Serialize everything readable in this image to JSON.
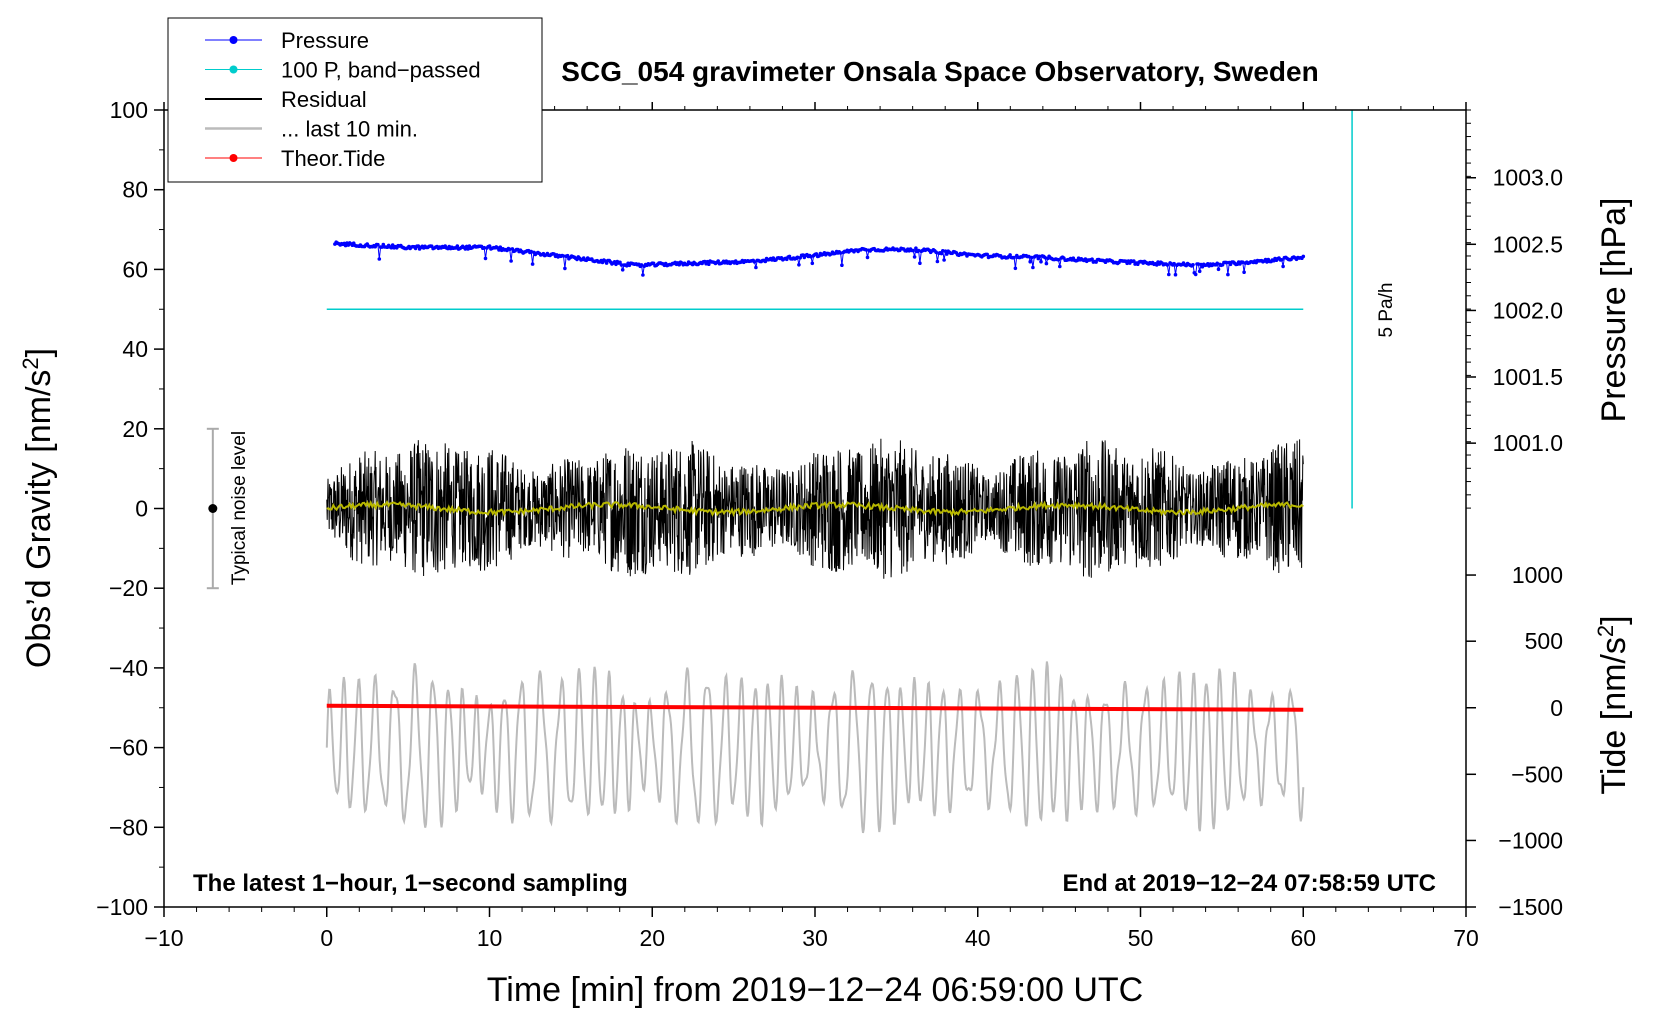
{
  "chart_data": {
    "type": "line",
    "title": "SCG_054 gravimeter Onsala Space Observatory, Sweden",
    "xlabel": "Time [min] from 2019−12−24 06:59:00 UTC",
    "ylabel_left": "Obs’d Gravity [nm/s",
    "ylabel_left_sup": "2",
    "ylabel_left_close": "]",
    "ylabel_pressure": "Pressure [hPa]",
    "ylabel_tide": "Tide [nm/s",
    "ylabel_tide_sup": "2",
    "ylabel_tide_close": "]",
    "xlim": [
      -10,
      70
    ],
    "ylim": [
      -100,
      100
    ],
    "x_ticks": [
      -10,
      0,
      10,
      20,
      30,
      40,
      50,
      60,
      70
    ],
    "x_tick_labels": [
      "−10",
      "0",
      "10",
      "20",
      "30",
      "40",
      "50",
      "60",
      "70"
    ],
    "y_ticks": [
      -100,
      -80,
      -60,
      -40,
      -20,
      0,
      20,
      40,
      60,
      80,
      100
    ],
    "y_tick_labels": [
      "−100",
      "−80",
      "−60",
      "−40",
      "−20",
      "0",
      "20",
      "40",
      "60",
      "80",
      "100"
    ],
    "pressure_ticks": [
      {
        "label": "1003.0",
        "left_equiv": 83
      },
      {
        "label": "1002.5",
        "left_equiv": 66.3
      },
      {
        "label": "1002.0",
        "left_equiv": 49.7
      },
      {
        "label": "1001.5",
        "left_equiv": 33
      },
      {
        "label": "1001.0",
        "left_equiv": 16.4
      }
    ],
    "tide_ticks": [
      {
        "label": "1000",
        "left_equiv": -16.7
      },
      {
        "label": "500",
        "left_equiv": -33.3
      },
      {
        "label": "0",
        "left_equiv": -50
      },
      {
        "label": "−500",
        "left_equiv": -66.7
      },
      {
        "label": "−1000",
        "left_equiv": -83.3
      },
      {
        "label": "−1500",
        "left_equiv": -100
      }
    ],
    "legend": [
      {
        "name": "Pressure",
        "color": "#0000ff",
        "marker": true
      },
      {
        "name": "100 P, band−passed",
        "color": "#00cccc",
        "marker": true
      },
      {
        "name": "Residual",
        "color": "#000000",
        "marker": false
      },
      {
        "name": "... last 10 min.",
        "color": "#bbbbbb",
        "marker": false
      },
      {
        "name": "Theor.Tide",
        "color": "#ff0000",
        "marker": true
      }
    ],
    "legend_position": "top-left",
    "pressure_series": {
      "color": "#0000ff",
      "x": [
        0.5,
        5,
        10,
        13,
        16,
        19,
        22,
        26,
        30,
        33,
        36,
        40,
        44,
        48,
        51,
        54,
        57,
        60
      ],
      "y": [
        66.5,
        65.5,
        65.5,
        64,
        62.5,
        61,
        61.5,
        62,
        63.5,
        65,
        65,
        63.5,
        63,
        62,
        61.5,
        61,
        62,
        63
      ]
    },
    "bandpassed_pressure_series": {
      "color": "#00cccc",
      "x": [
        0,
        60
      ],
      "y": [
        50,
        50
      ]
    },
    "residual_series": {
      "color": "#000000",
      "x_range": [
        0,
        60
      ],
      "typical_amplitude": 12,
      "min": -32,
      "max": 26
    },
    "residual_smoothed_series": {
      "color": "#b8b800",
      "x_range": [
        0,
        60
      ],
      "level": 0
    },
    "last_10_min_series": {
      "color": "#bbbbbb",
      "x_range": [
        0,
        60
      ],
      "center": -60,
      "min": -86,
      "max": -38
    },
    "tide_series": {
      "color": "#ff0000",
      "x": [
        0,
        60
      ],
      "y": [
        -49.5,
        -50.5
      ]
    },
    "rate_bar": {
      "color": "#00cccc",
      "x": 63,
      "y_range": [
        0,
        100
      ],
      "label": "5 Pa/h"
    },
    "noise_bar": {
      "x": -7,
      "center": 0,
      "half_range": 20,
      "label": "Typical noise level"
    },
    "annotation_left": "The latest 1−hour, 1−second sampling",
    "annotation_right": "End at 2019−12−24 07:58:59 UTC"
  }
}
